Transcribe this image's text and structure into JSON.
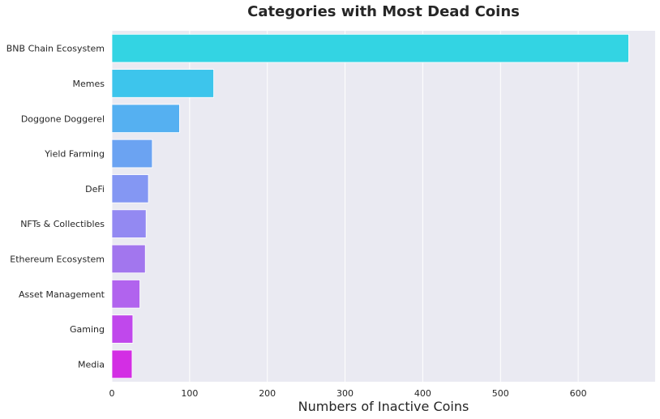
{
  "chart_data": {
    "type": "bar",
    "orientation": "horizontal",
    "title": "Categories with Most Dead Coins",
    "xlabel": "Numbers of Inactive Coins",
    "ylabel": "",
    "xlim": [
      0,
      699
    ],
    "xticks": [
      0,
      100,
      200,
      300,
      400,
      500,
      600
    ],
    "grid": true,
    "categories": [
      "BNB Chain Ecosystem",
      "Memes",
      "Doggone Doggerel",
      "Yield Farming",
      "DeFi",
      "NFTs & Collectibles",
      "Ethereum Ecosystem",
      "Asset Management",
      "Gaming",
      "Media"
    ],
    "values": [
      665,
      131,
      87,
      52,
      47,
      44,
      43,
      36,
      27,
      26
    ],
    "colors": [
      "#33d4e3",
      "#3dc5ec",
      "#55b0f1",
      "#6ba3f2",
      "#8497f3",
      "#9389f2",
      "#a276ee",
      "#b163ee",
      "#c048ec",
      "#d32ee4"
    ],
    "background": "#eaeaf2",
    "grid_color": "#ffffff"
  }
}
